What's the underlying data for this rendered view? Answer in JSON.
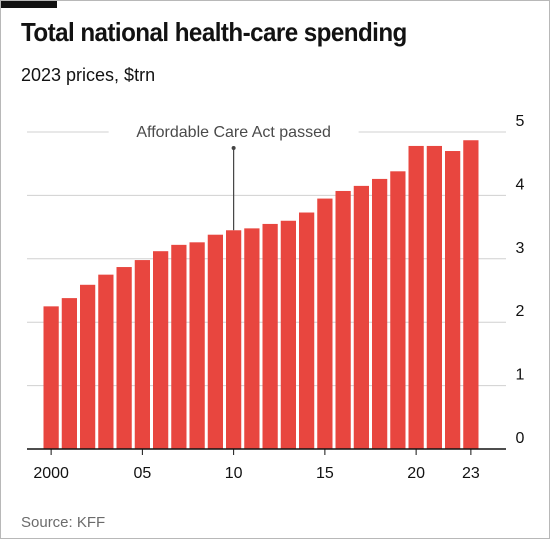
{
  "header": {
    "title": "Total national health-care spending",
    "subtitle": "2023 prices, $trn"
  },
  "footer": {
    "source": "Source: KFF"
  },
  "colors": {
    "bar": "#e8463f",
    "grid": "#d0d0d0",
    "axis": "#121212",
    "annotation_line": "#444444",
    "top_bar": "#121212"
  },
  "chart_data": {
    "type": "bar",
    "x": [
      2000,
      2001,
      2002,
      2003,
      2004,
      2005,
      2006,
      2007,
      2008,
      2009,
      2010,
      2011,
      2012,
      2013,
      2014,
      2015,
      2016,
      2017,
      2018,
      2019,
      2020,
      2021,
      2022,
      2023
    ],
    "values": [
      2.25,
      2.38,
      2.59,
      2.75,
      2.87,
      2.98,
      3.12,
      3.22,
      3.26,
      3.38,
      3.45,
      3.48,
      3.55,
      3.6,
      3.73,
      3.95,
      4.07,
      4.15,
      4.26,
      4.38,
      4.78,
      4.78,
      4.7,
      4.87
    ],
    "x_tick_labels": [
      {
        "x": 2000,
        "label": "2000"
      },
      {
        "x": 2005,
        "label": "05"
      },
      {
        "x": 2010,
        "label": "10"
      },
      {
        "x": 2015,
        "label": "15"
      },
      {
        "x": 2020,
        "label": "20"
      },
      {
        "x": 2023,
        "label": "23"
      }
    ],
    "y_ticks": [
      0,
      1,
      2,
      3,
      4,
      5
    ],
    "ylim": [
      0,
      5
    ],
    "y_axis_side": "right",
    "grid": true,
    "annotations": [
      {
        "x": 2010,
        "text": "Affordable Care Act passed"
      }
    ]
  }
}
